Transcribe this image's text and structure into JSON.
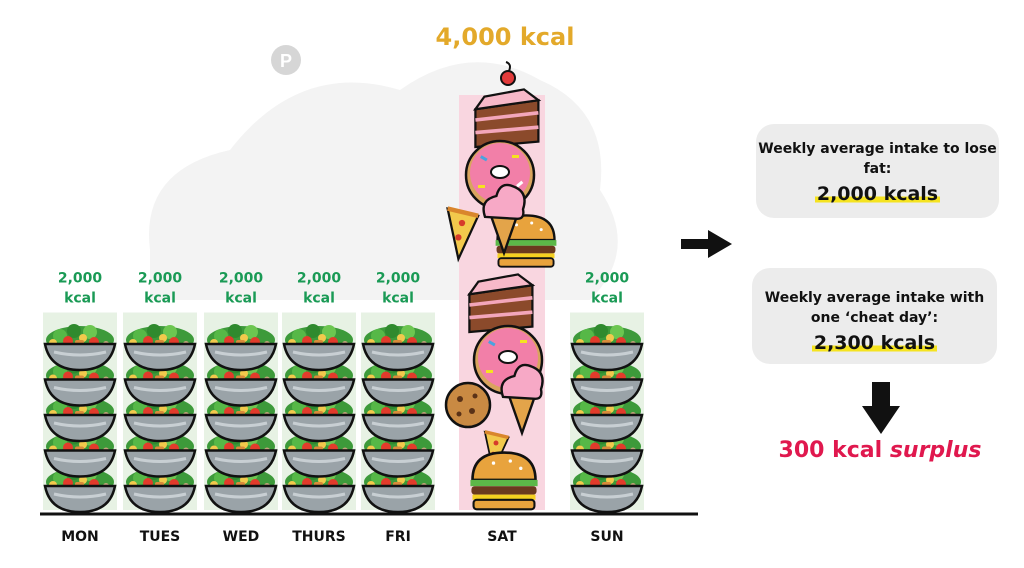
{
  "chart_data": {
    "type": "bar",
    "categories": [
      "MON",
      "TUES",
      "WED",
      "THURS",
      "FRI",
      "SAT",
      "SUN"
    ],
    "values": [
      2000,
      2000,
      2000,
      2000,
      2000,
      4000,
      2000
    ],
    "value_labels": [
      [
        "2,000",
        "kcal"
      ],
      [
        "2,000",
        "kcal"
      ],
      [
        "2,000",
        "kcal"
      ],
      [
        "2,000",
        "kcal"
      ],
      [
        "2,000",
        "kcal"
      ],
      [
        "4,000 kcal"
      ],
      [
        "2,000",
        "kcal"
      ]
    ],
    "highlight_category": "SAT",
    "ylim": [
      0,
      4000
    ],
    "grid": false,
    "colors": {
      "weekday_label": "#1a9a55",
      "cheat_label": "#e3a92a",
      "salad_bowl": "#9aa3a8",
      "cheat_column_bg": "#f9d6e0",
      "axis": "#111111"
    }
  },
  "side_panel": {
    "goal": {
      "label": "Weekly average intake to lose fat:",
      "value": "2,000 kcals"
    },
    "cheat": {
      "label": "Weekly average intake with one ‘cheat day’:",
      "value": "2,300 kcals"
    },
    "result_amount": "300 kcal",
    "result_word": "surplus",
    "result_color": "#e0184e"
  },
  "icons": [
    "right-arrow-icon",
    "down-arrow-icon",
    "salad-bowl-icon",
    "cake-slice-icon",
    "donut-icon",
    "ice-cream-cone-icon",
    "burger-icon",
    "pizza-slice-icon",
    "cookie-icon",
    "watermark-logo-icon"
  ]
}
